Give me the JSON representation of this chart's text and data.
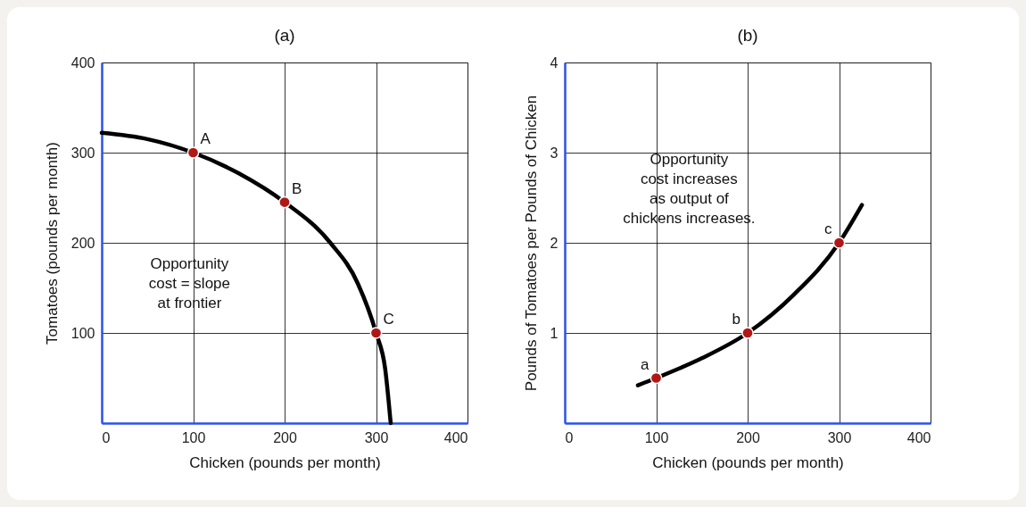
{
  "chart_data": [
    {
      "type": "line",
      "title": "(a)",
      "xlabel": "Chicken (pounds per month)",
      "ylabel": "Tomatoes (pounds per month)",
      "xlim": [
        0,
        400
      ],
      "ylim": [
        0,
        400
      ],
      "xticks": [
        0,
        100,
        200,
        300,
        400
      ],
      "yticks": [
        100,
        200,
        300,
        400
      ],
      "grid": true,
      "series": [
        {
          "type": "line",
          "color": "#000000",
          "x": [
            0,
            50,
            100,
            150,
            200,
            250,
            280,
            300,
            310,
            316
          ],
          "values": [
            322,
            315,
            300,
            277,
            245,
            200,
            155,
            100,
            60,
            0
          ]
        },
        {
          "type": "scatter",
          "marker": "circle",
          "color": "#b01818",
          "x": [
            100,
            200,
            300
          ],
          "values": [
            300,
            245,
            100
          ]
        }
      ],
      "annotations": [
        {
          "text": "A",
          "x": 100,
          "y": 300
        },
        {
          "text": "B",
          "x": 200,
          "y": 245
        },
        {
          "text": "C",
          "x": 300,
          "y": 100
        },
        "Opportunity\ncost = slope\nat frontier"
      ]
    },
    {
      "type": "line",
      "title": "(b)",
      "xlabel": "Chicken (pounds per month)",
      "ylabel": "Pounds of Tomatoes per Pounds of  Chicken",
      "xlim": [
        0,
        400
      ],
      "ylim": [
        0,
        4
      ],
      "xticks": [
        0,
        100,
        200,
        300,
        400
      ],
      "yticks": [
        1,
        2,
        3,
        4
      ],
      "grid": true,
      "series": [
        {
          "type": "line",
          "color": "#000000",
          "x": [
            80,
            100,
            150,
            200,
            250,
            300,
            325
          ],
          "values": [
            0.42,
            0.5,
            0.72,
            1.0,
            1.42,
            2.0,
            2.42
          ]
        },
        {
          "type": "scatter",
          "marker": "circle",
          "color": "#b01818",
          "x": [
            100,
            200,
            300
          ],
          "values": [
            0.5,
            1,
            2
          ]
        }
      ],
      "annotations": [
        {
          "text": "a",
          "x": 100,
          "y": 0.5
        },
        {
          "text": "b",
          "x": 200,
          "y": 1
        },
        {
          "text": "c",
          "x": 300,
          "y": 2
        },
        "Opportunity\ncost increases\nas output of\nchickens increases."
      ]
    }
  ]
}
